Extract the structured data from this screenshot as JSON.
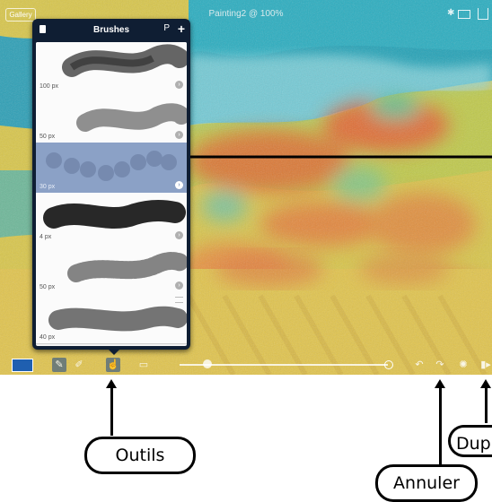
{
  "status_bar": {
    "gallery_label": "Gallery",
    "document_title": "Painting2 @ 100%"
  },
  "brushes_panel": {
    "title": "Brushes",
    "import_label": "P",
    "add_label": "+",
    "items": [
      {
        "size": "100 px",
        "selected": false
      },
      {
        "size": "50 px",
        "selected": false
      },
      {
        "size": "30 px",
        "selected": true
      },
      {
        "size": "4 px",
        "selected": false
      },
      {
        "size": "50 px",
        "selected": false
      },
      {
        "size": "40 px",
        "selected": false
      }
    ]
  },
  "toolbar": {
    "accent_color": "#1f5fb0",
    "tools": [
      "pencil-icon",
      "brush-icon",
      "smudge-icon",
      "eraser-icon"
    ],
    "right_icons": [
      "undo-icon",
      "redo-icon",
      "settings-icon",
      "duplicate-icon"
    ]
  },
  "annotations": {
    "tools": "Outils",
    "undo": "Annuler",
    "duplicate": "Dup"
  }
}
